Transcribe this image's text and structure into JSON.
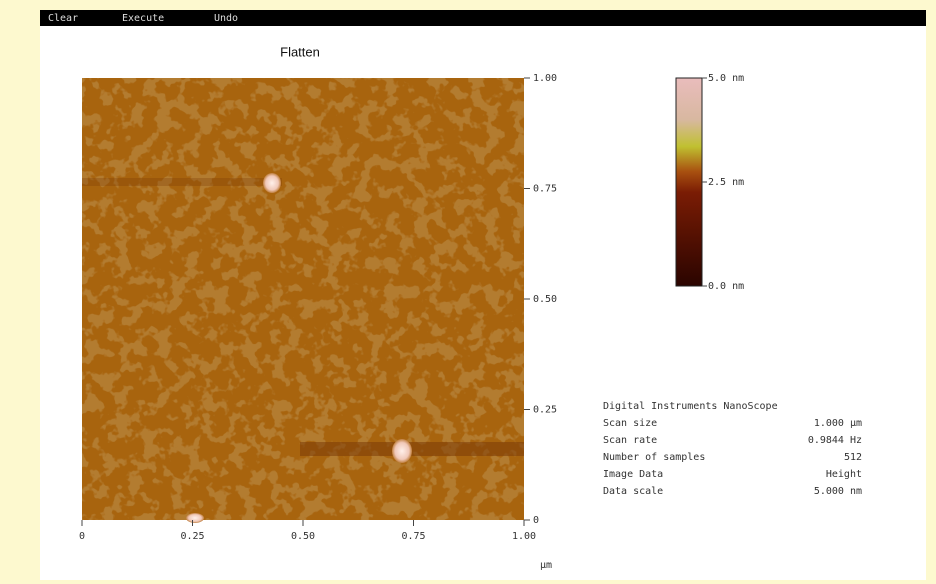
{
  "menu": [
    "Clear",
    "Execute",
    "Undo"
  ],
  "title": "Flatten",
  "y_axis_labels": [
    "1.00",
    "0.75",
    "0.50",
    "0.25",
    "0"
  ],
  "x_axis_labels": [
    "0",
    "0.25",
    "0.50",
    "0.75",
    "1.00"
  ],
  "x_unit": "µm",
  "colorbar_labels": [
    "5.0 nm",
    "2.5 nm",
    "0.0 nm"
  ],
  "info": {
    "header": "Digital Instruments NanoScope",
    "rows": [
      [
        "Scan size",
        "1.000 µm"
      ],
      [
        "Scan rate",
        "0.9844 Hz"
      ],
      [
        "Number of samples",
        "512"
      ],
      [
        "Image Data",
        "Height"
      ],
      [
        "Data scale",
        "5.000 nm"
      ]
    ]
  }
}
